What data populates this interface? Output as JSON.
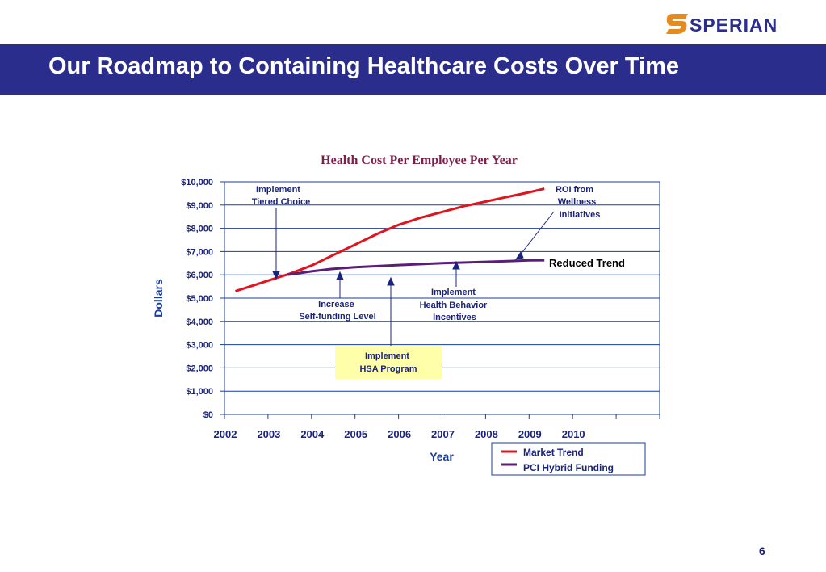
{
  "brand": {
    "name": "SPERIAN",
    "accent": "#2b2d8c",
    "logo_mark_color": "#e58a1f",
    "logo_icon": "sperian-s-mark-icon"
  },
  "slide": {
    "title": "Our Roadmap to Containing Healthcare Costs Over Time",
    "page_number": "6"
  },
  "chart_data": {
    "type": "line",
    "title": "Health Cost Per Employee Per Year",
    "xlabel": "Year",
    "ylabel": "Dollars",
    "ylim": [
      0,
      10000
    ],
    "xlim": [
      2002,
      2012
    ],
    "x_tick_labels": [
      "2002",
      "2003",
      "2004",
      "2005",
      "2006",
      "2007",
      "2008",
      "2009",
      "2010"
    ],
    "y_tick_labels": [
      "$0",
      "$1,000",
      "$2,000",
      "$3,000",
      "$4,000",
      "$5,000",
      "$6,000",
      "$7,000",
      "$8,000",
      "$9,000",
      "$10,000"
    ],
    "grid": "horizontal",
    "legend_position": "bottom-right",
    "series": [
      {
        "name": "Market Trend",
        "color": "#e0141e",
        "x": [
          2002.25,
          2003.0,
          2003.5,
          2004.0,
          2004.5,
          2005.0,
          2005.5,
          2006.0,
          2006.5,
          2007.0,
          2007.5,
          2008.0,
          2008.5,
          2009.0,
          2009.35
        ],
        "values": [
          5300,
          5750,
          6050,
          6400,
          6850,
          7300,
          7750,
          8150,
          8450,
          8700,
          8950,
          9150,
          9350,
          9550,
          9700
        ]
      },
      {
        "name": "PCI Hybrid Funding",
        "color": "#5a1e78",
        "x": [
          2003.45,
          2004.0,
          2004.45,
          2005.0,
          2006.0,
          2007.0,
          2008.0,
          2009.0,
          2009.35
        ],
        "values": [
          6000,
          6150,
          6250,
          6330,
          6420,
          6500,
          6560,
          6620,
          6630
        ]
      }
    ],
    "annotations": [
      {
        "text": [
          "Implement",
          "Tiered Choice"
        ]
      },
      {
        "text": [
          "Increase",
          "Self-funding Level"
        ]
      },
      {
        "text": [
          "Implement",
          "HSA Program"
        ],
        "highlight_color": "#ffffaa"
      },
      {
        "text": [
          "Implement",
          "Health Behavior",
          "Incentives"
        ]
      },
      {
        "text": [
          "ROI from",
          "Wellness",
          "Initiatives"
        ]
      },
      {
        "text": [
          "Reduced Trend"
        ]
      }
    ],
    "annotation_color": "#1a237e",
    "title_color": "#7a1f4a",
    "axis_label_color": "#1a3c9e"
  }
}
